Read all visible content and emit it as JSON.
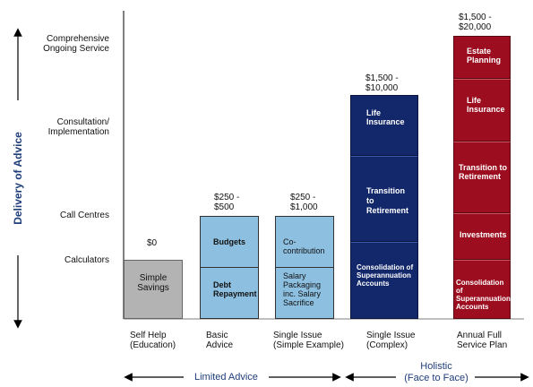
{
  "side_axis": {
    "label": "Delivery of Advice"
  },
  "levels": [
    {
      "label": "Comprehensive\nOngoing Service"
    },
    {
      "label": "Consultation/\nImplementation"
    },
    {
      "label": "Call Centres"
    },
    {
      "label": "Calculators"
    }
  ],
  "columns": [
    {
      "x_label": "Self Help\n(Education)",
      "price": "$0",
      "segments": [
        {
          "label": "Simple\nSavings"
        }
      ]
    },
    {
      "x_label": "Basic\nAdvice",
      "price": "$250 -\n$500",
      "segments": [
        {
          "label": "Budgets"
        },
        {
          "label": "Debt\nRepayment"
        }
      ]
    },
    {
      "x_label": "Single Issue\n(Simple Example)",
      "price": "$250 -\n$1,000",
      "segments": [
        {
          "label": "Co-\ncontribution"
        },
        {
          "label": "Salary\nPackaging\ninc. Salary\nSacrifice"
        }
      ]
    },
    {
      "x_label": "Single Issue\n(Complex)",
      "price": "$1,500 -\n$10,000",
      "segments": [
        {
          "label": "Life\nInsurance"
        },
        {
          "label": "Transition\nto\nRetirement"
        },
        {
          "label": "Consolidation of\nSuperannuation\nAccounts"
        }
      ]
    },
    {
      "x_label": "Annual Full\nService Plan",
      "price": "$1,500 -\n$20,000",
      "segments": [
        {
          "label": "Estate\nPlanning"
        },
        {
          "label": "Life\nInsurance"
        },
        {
          "label": "Transition to\nRetirement"
        },
        {
          "label": "Investments"
        },
        {
          "label": "Consolidation of\nSuperannuation\nAccounts"
        }
      ]
    }
  ],
  "groups": [
    {
      "label": "Limited Advice"
    },
    {
      "label": "Holistic\n(Face to Face)"
    }
  ],
  "colors": {
    "grey": "#b3b3b3",
    "light_blue": "#8dbfe0",
    "dark_blue": "#13286b",
    "dark_red": "#9c0d1f",
    "label_blue": "#1f3d7a"
  }
}
